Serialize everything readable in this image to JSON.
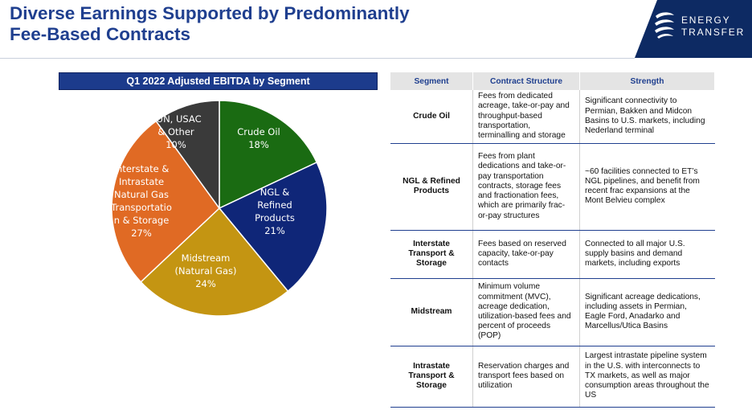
{
  "title": {
    "line1": "Diverse Earnings Supported by Predominantly",
    "line2": "Fee-Based Contracts"
  },
  "brand": {
    "line1": "ENERGY",
    "line2": "TRANSFER"
  },
  "colors": {
    "title": "#1f3f8f",
    "brand_bg": "#0d2a63",
    "header_bg": "#1c3b8c"
  },
  "chart_title": "Q1 2022 Adjusted EBITDA by Segment",
  "chart_data": {
    "type": "pie",
    "title": "Q1 2022 Adjusted EBITDA by Segment",
    "slices": [
      {
        "label": [
          "Crude Oil",
          "18%"
        ],
        "value": 18,
        "color": "#1a6b12",
        "text": "#ffffff"
      },
      {
        "label": [
          "NGL &",
          "Refined",
          "Products",
          "21%"
        ],
        "value": 21,
        "color": "#0f2678",
        "text": "#ffffff"
      },
      {
        "label": [
          "Midstream",
          "(Natural Gas)",
          "24%"
        ],
        "value": 24,
        "color": "#c49512",
        "text": "#ffffff"
      },
      {
        "label": [
          "Interstate &",
          "Intrastate",
          "Natural Gas",
          "Transportatio",
          "n & Storage",
          "27%"
        ],
        "value": 27,
        "color": "#e06a24",
        "text": "#ffffff"
      },
      {
        "label": [
          "SUN, USAC",
          "& Other",
          "10%"
        ],
        "value": 10,
        "color": "#3a3a3a",
        "text": "#ffffff"
      }
    ]
  },
  "table": {
    "headers": [
      "Segment",
      "Contract Structure",
      "Strength"
    ],
    "rows": [
      {
        "segment": [
          "Crude Oil"
        ],
        "contract": "Fees from dedicated acreage, take-or-pay and throughput-based transportation, terminalling and storage",
        "strength": "Significant connectivity to Permian, Bakken and Midcon Basins to U.S. markets, including Nederland terminal"
      },
      {
        "segment": [
          "NGL & Refined",
          "Products"
        ],
        "contract": "Fees from plant dedications and take-or-pay transportation contracts, storage fees and fractionation fees, which are primarily frac-or-pay structures",
        "strength": "~60 facilities connected to ET’s NGL pipelines, and benefit from recent frac expansions at the Mont Belvieu complex"
      },
      {
        "segment": [
          "Interstate",
          "Transport &",
          "Storage"
        ],
        "contract": "Fees based on reserved capacity, take-or-pay contacts",
        "strength": "Connected to all major U.S. supply basins and demand markets, including exports"
      },
      {
        "segment": [
          "Midstream"
        ],
        "contract": "Minimum volume commitment (MVC), acreage dedication, utilization-based fees and percent of proceeds (POP)",
        "strength": "Significant acreage dedications, including assets in Permian, Eagle Ford, Anadarko and Marcellus/Utica Basins"
      },
      {
        "segment": [
          "Intrastate",
          "Transport &",
          "Storage"
        ],
        "contract": "Reservation charges and transport fees based on utilization",
        "strength": "Largest intrastate pipeline system in the U.S. with interconnects to TX markets, as well as major consumption areas throughout the US"
      }
    ]
  }
}
